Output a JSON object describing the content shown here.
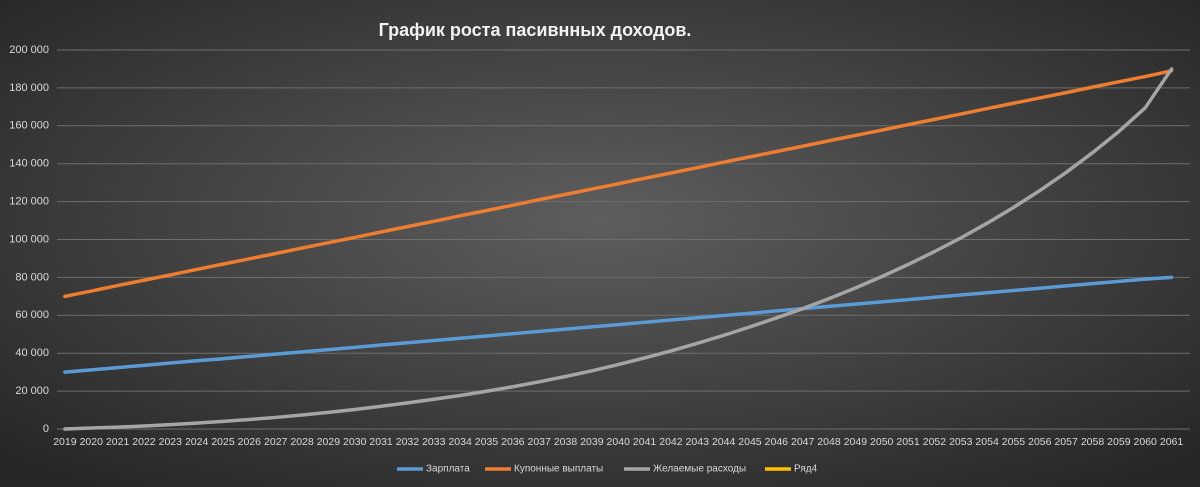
{
  "chart_data": {
    "type": "line",
    "title": "График роста пасивнных доходов.",
    "categories": [
      "2019",
      "2020",
      "2021",
      "2022",
      "2023",
      "2024",
      "2025",
      "2026",
      "2027",
      "2028",
      "2029",
      "2030",
      "2031",
      "2032",
      "2033",
      "2034",
      "2035",
      "2036",
      "2037",
      "2038",
      "2039",
      "2040",
      "2041",
      "2042",
      "2043",
      "2044",
      "2045",
      "2046",
      "2047",
      "2048",
      "2049",
      "2050",
      "2051",
      "2052",
      "2053",
      "2054",
      "2055",
      "2056",
      "2057",
      "2058",
      "2059",
      "2060",
      "2061"
    ],
    "series": [
      {
        "name": "Зарплата",
        "color": "#5b9bd5",
        "values": [
          30000,
          31200,
          32400,
          33600,
          34800,
          36000,
          37100,
          38300,
          39500,
          40700,
          41900,
          43100,
          44300,
          45500,
          46700,
          47900,
          49100,
          50300,
          51500,
          52700,
          53900,
          55100,
          56300,
          57500,
          58700,
          59900,
          61100,
          62300,
          63500,
          64700,
          65900,
          67100,
          68300,
          69500,
          70700,
          71900,
          73100,
          74300,
          75500,
          76700,
          77900,
          79100,
          80000
        ]
      },
      {
        "name": "Купонные выплаты",
        "color": "#ed7d31",
        "values": [
          70000,
          72800,
          75700,
          78500,
          81300,
          84200,
          87000,
          89800,
          92600,
          95500,
          98300,
          101100,
          104000,
          106800,
          109600,
          112500,
          115300,
          118100,
          121000,
          123800,
          126600,
          129400,
          132300,
          135100,
          137900,
          140800,
          143600,
          146400,
          149200,
          152100,
          154900,
          157700,
          160600,
          163400,
          166200,
          169100,
          171900,
          174700,
          177500,
          180400,
          183200,
          186000,
          189000
        ]
      },
      {
        "name": "Желаемые расходы",
        "color": "#a5a5a5",
        "values": [
          0,
          500,
          1000,
          1600,
          2300,
          3100,
          4000,
          5000,
          6100,
          7400,
          8800,
          10300,
          12000,
          13800,
          15700,
          17700,
          19900,
          22300,
          24900,
          27700,
          30700,
          34000,
          37500,
          41200,
          45200,
          49400,
          53900,
          58600,
          63500,
          68800,
          74400,
          80400,
          86800,
          93600,
          100800,
          108600,
          116900,
          125800,
          135400,
          145800,
          157000,
          169500,
          190000
        ]
      },
      {
        "name": "Ряд4",
        "color": "#ffc000",
        "values": [
          null,
          null,
          null,
          null,
          null,
          null,
          null,
          null,
          null,
          null,
          null,
          null,
          null,
          null,
          null,
          null,
          null,
          null,
          null,
          null,
          null,
          null,
          null,
          null,
          null,
          null,
          null,
          null,
          null,
          null,
          null,
          null,
          null,
          null,
          null,
          null,
          null,
          null,
          null,
          null,
          null,
          null,
          null
        ]
      }
    ],
    "ylim": [
      0,
      200000
    ],
    "yticks": [
      0,
      {
        "value": 20000,
        "label": "20 000"
      },
      {
        "value": 40000,
        "label": "40 000"
      },
      {
        "value": 60000,
        "label": "60 000"
      },
      {
        "value": 80000,
        "label": "80 000"
      },
      {
        "value": 100000,
        "label": "100 000"
      },
      {
        "value": 120000,
        "label": "120 000"
      },
      {
        "value": 140000,
        "label": "140 000"
      },
      {
        "value": 160000,
        "label": "160 000"
      },
      {
        "value": 180000,
        "label": "180 000"
      },
      {
        "value": 200000,
        "label": "200 000"
      }
    ],
    "grid": true,
    "legend": "bottom"
  }
}
